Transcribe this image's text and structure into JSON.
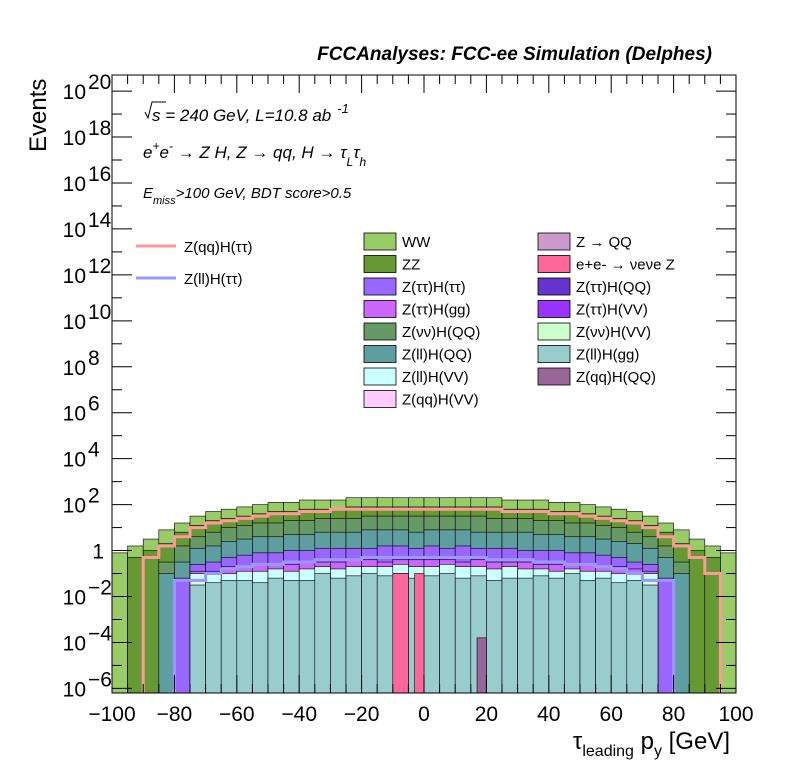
{
  "chart_data": {
    "type": "histogram",
    "title": "FCCAnalyses: FCC-ee Simulation (Delphes)",
    "ylabel": "Events",
    "xlabel_main": "τ",
    "xlabel_sub": "leading",
    "xlabel_rest": " p",
    "xlabel_sub2": "y",
    "xlabel_unit": " [GeV]",
    "xlim": [
      -100,
      100
    ],
    "ylim_log10": [
      -6.2,
      20.7
    ],
    "ylog": true,
    "x_ticks": [
      {
        "v": -100,
        "label": "−100"
      },
      {
        "v": -80,
        "label": "−80"
      },
      {
        "v": -60,
        "label": "−60"
      },
      {
        "v": -40,
        "label": "−40"
      },
      {
        "v": -20,
        "label": "−20"
      },
      {
        "v": 0,
        "label": "0"
      },
      {
        "v": 20,
        "label": "20"
      },
      {
        "v": 40,
        "label": "40"
      },
      {
        "v": 60,
        "label": "60"
      },
      {
        "v": 80,
        "label": "80"
      },
      {
        "v": 100,
        "label": "100"
      }
    ],
    "y_ticks": [
      {
        "e": -6,
        "base": "10",
        "exp": "−6"
      },
      {
        "e": -4,
        "base": "10",
        "exp": "−4"
      },
      {
        "e": -2,
        "base": "10",
        "exp": "−2"
      },
      {
        "e": 0,
        "base": "1",
        "exp": ""
      },
      {
        "e": 2,
        "base": "10",
        "exp": "2"
      },
      {
        "e": 4,
        "base": "10",
        "exp": "4"
      },
      {
        "e": 6,
        "base": "10",
        "exp": "6"
      },
      {
        "e": 8,
        "base": "10",
        "exp": "8"
      },
      {
        "e": 10,
        "base": "10",
        "exp": "10"
      },
      {
        "e": 12,
        "base": "10",
        "exp": "12"
      },
      {
        "e": 14,
        "base": "10",
        "exp": "14"
      },
      {
        "e": 16,
        "base": "10",
        "exp": "16"
      },
      {
        "e": 18,
        "base": "10",
        "exp": "18"
      },
      {
        "e": 20,
        "base": "10",
        "exp": "20"
      }
    ],
    "annotations": {
      "line1_sqrt": "√s",
      "line1_rest": " = 240 GeV, L=10.8 ab",
      "line1_sup": "-1",
      "line2_a": "e",
      "line2_sup1": "+",
      "line2_b": "e",
      "line2_sup2": "-",
      "line2_c": " → Z H, Z  → qq, H  →  τ",
      "line2_sub1": "L",
      "line2_d": "τ",
      "line2_sub2": "h",
      "line3_a": "E",
      "line3_sub": "miss",
      "line3_b": ">100 GeV, BDT score>0.5"
    },
    "bin_edges": [
      -100,
      -95,
      -90,
      -85,
      -80,
      -75,
      -70,
      -65,
      -60,
      -55,
      -50,
      -45,
      -40,
      -35,
      -30,
      -25,
      -20,
      -15,
      -10,
      -5,
      0,
      5,
      10,
      15,
      20,
      25,
      30,
      35,
      40,
      45,
      50,
      55,
      60,
      65,
      70,
      75,
      80,
      85,
      90,
      95,
      100
    ],
    "stack": [
      {
        "name": "Z(ll)H(gg)",
        "color": "#99cccc",
        "log10_values": [
          null,
          null,
          null,
          null,
          null,
          -1.5,
          -1.4,
          -1.3,
          -1.3,
          -1.4,
          -1.2,
          -1.3,
          -1.3,
          -1.0,
          -1.2,
          -1.1,
          -1.0,
          -1.1,
          -1.0,
          -1.2,
          -1.1,
          -1.0,
          -1.2,
          -1.1,
          -1.3,
          -1.2,
          -1.2,
          -1.1,
          -1.2,
          -1.0,
          -1.3,
          -1.2,
          -1.4,
          -1.3,
          -1.5,
          null,
          null,
          null,
          null,
          null
        ]
      },
      {
        "name": "Z(ll)H(VV)",
        "color": "#ccffff",
        "log10_values": [
          null,
          null,
          null,
          null,
          null,
          -1.0,
          -1.0,
          -1.0,
          -0.9,
          -0.9,
          -0.8,
          -0.9,
          -0.8,
          -0.7,
          -0.8,
          -0.7,
          -0.7,
          -0.7,
          -0.6,
          -0.7,
          -0.7,
          -0.6,
          -0.7,
          -0.7,
          -0.8,
          -0.7,
          -0.8,
          -0.8,
          -0.9,
          -0.8,
          -0.9,
          -0.9,
          -1.0,
          -1.0,
          -1.0,
          null,
          null,
          null,
          null,
          null
        ]
      },
      {
        "name": "Z(ττ)H(gg)",
        "color": "#cc66ff",
        "log10_values": [
          null,
          null,
          null,
          null,
          null,
          -0.9,
          -0.9,
          -0.7,
          -0.7,
          -0.6,
          -0.6,
          -0.6,
          -0.5,
          -0.5,
          -0.5,
          -0.4,
          -0.4,
          -0.5,
          -0.4,
          -0.4,
          -0.4,
          -0.4,
          -0.5,
          -0.4,
          -0.5,
          -0.5,
          -0.5,
          -0.6,
          -0.6,
          -0.6,
          -0.6,
          -0.7,
          -0.7,
          -0.8,
          -0.9,
          null,
          null,
          null,
          null,
          null
        ]
      },
      {
        "name": "Z(ττ)H(ττ)",
        "color": "#9966ff",
        "log10_values": [
          null,
          null,
          null,
          null,
          -1.2,
          -0.6,
          -0.5,
          -0.3,
          -0.2,
          -0.1,
          -0.1,
          0.0,
          0.0,
          0.1,
          0.1,
          0.1,
          0.1,
          0.2,
          0.2,
          0.1,
          0.2,
          0.1,
          0.2,
          0.1,
          0.1,
          0.1,
          0.0,
          0.0,
          0.0,
          -0.1,
          -0.1,
          -0.2,
          -0.3,
          -0.5,
          -0.6,
          -1.2,
          null,
          null,
          null,
          null
        ]
      },
      {
        "name": "Z(ll)H(QQ)",
        "color": "#5f9ea0",
        "log10_values": [
          null,
          null,
          null,
          -1.0,
          -0.5,
          0.1,
          0.2,
          0.4,
          0.5,
          0.6,
          0.6,
          0.7,
          0.7,
          0.8,
          0.8,
          0.8,
          0.9,
          0.9,
          0.9,
          0.8,
          0.9,
          0.9,
          0.9,
          0.8,
          0.8,
          0.8,
          0.8,
          0.7,
          0.7,
          0.6,
          0.6,
          0.5,
          0.4,
          0.3,
          0.1,
          -0.3,
          -1.0,
          null,
          null,
          null
        ]
      },
      {
        "name": "Z(νν)H(QQ)",
        "color": "#669966",
        "log10_values": [
          null,
          null,
          null,
          -0.5,
          0.2,
          0.6,
          0.8,
          1.0,
          1.1,
          1.2,
          1.2,
          1.3,
          1.3,
          1.4,
          1.4,
          1.4,
          1.5,
          1.5,
          1.5,
          1.5,
          1.5,
          1.5,
          1.5,
          1.5,
          1.4,
          1.4,
          1.4,
          1.3,
          1.3,
          1.2,
          1.2,
          1.1,
          1.0,
          0.8,
          0.6,
          0.2,
          -0.5,
          null,
          null,
          null
        ]
      },
      {
        "name": "ZZ",
        "color": "#669933",
        "log10_values": [
          null,
          -0.3,
          0.0,
          0.3,
          0.8,
          1.1,
          1.3,
          1.4,
          1.5,
          1.6,
          1.7,
          1.7,
          1.8,
          1.8,
          1.8,
          1.9,
          1.9,
          1.9,
          1.9,
          1.9,
          1.9,
          1.9,
          1.9,
          1.9,
          1.9,
          1.8,
          1.8,
          1.8,
          1.7,
          1.7,
          1.6,
          1.5,
          1.4,
          1.3,
          1.1,
          0.8,
          0.3,
          0.0,
          -0.3,
          null
        ]
      },
      {
        "name": "WW",
        "color": "#99cc66",
        "log10_values": [
          -0.1,
          0.2,
          0.5,
          0.9,
          1.2,
          1.5,
          1.7,
          1.8,
          1.9,
          2.0,
          2.1,
          2.1,
          2.2,
          2.2,
          2.2,
          2.3,
          2.3,
          2.3,
          2.3,
          2.3,
          2.3,
          2.3,
          2.3,
          2.3,
          2.3,
          2.2,
          2.2,
          2.2,
          2.1,
          2.1,
          2.0,
          1.9,
          1.8,
          1.7,
          1.5,
          1.2,
          0.9,
          0.5,
          0.2,
          -0.1
        ]
      }
    ],
    "spikes": [
      {
        "name": "e+e- → νeνe Z",
        "color": "#ff6699",
        "x0": -10,
        "x1": -5,
        "log10": -1.0
      },
      {
        "name": "e+e- → νeνe Z",
        "color": "#ff6699",
        "x0": -3,
        "x1": 0,
        "log10": -1.0
      },
      {
        "name": "Z(qq)H(QQ)",
        "color": "#996699",
        "x0": 17,
        "x1": 20,
        "log10": -3.8
      }
    ],
    "overlays": [
      {
        "name": "Z(qq)H(ττ)",
        "color": "#ff9999",
        "log10_values": [
          null,
          null,
          -0.3,
          0.2,
          0.6,
          1.0,
          1.2,
          1.3,
          1.4,
          1.5,
          1.6,
          1.6,
          1.7,
          1.7,
          1.8,
          1.8,
          1.8,
          1.8,
          1.8,
          1.8,
          1.8,
          1.8,
          1.8,
          1.8,
          1.8,
          1.7,
          1.7,
          1.7,
          1.6,
          1.6,
          1.5,
          1.4,
          1.3,
          1.2,
          1.0,
          0.6,
          0.2,
          -0.3,
          -1.0,
          null
        ]
      },
      {
        "name": "Z(ll)H(ττ)",
        "color": "#9999ff",
        "log10_values": [
          null,
          null,
          null,
          null,
          -1.3,
          -1.3,
          -1.0,
          -0.8,
          -0.7,
          -0.6,
          -0.6,
          -0.5,
          -0.5,
          -0.4,
          -0.4,
          -0.4,
          -0.3,
          -0.3,
          -0.3,
          -0.3,
          -0.3,
          -0.3,
          -0.3,
          -0.3,
          -0.4,
          -0.4,
          -0.4,
          -0.5,
          -0.5,
          -0.6,
          -0.6,
          -0.7,
          -0.8,
          -1.0,
          -1.3,
          -1.3,
          null,
          null,
          null,
          null
        ]
      }
    ],
    "legend_lines": [
      {
        "label": "Z(qq)H(ττ)",
        "color": "#ff9999"
      },
      {
        "label": "Z(ll)H(ττ)",
        "color": "#9999ff"
      }
    ],
    "legend_boxes": [
      {
        "label": "WW",
        "color": "#99cc66"
      },
      {
        "label": "Z → QQ",
        "color": "#cc99cc"
      },
      {
        "label": "ZZ",
        "color": "#669933"
      },
      {
        "label": "e+e- → νeνe Z",
        "color": "#ff6699"
      },
      {
        "label": "Z(ττ)H(ττ)",
        "color": "#9966ff"
      },
      {
        "label": "Z(ττ)H(QQ)",
        "color": "#6633cc"
      },
      {
        "label": "Z(ττ)H(gg)",
        "color": "#cc66ff"
      },
      {
        "label": "Z(ττ)H(VV)",
        "color": "#9933ff"
      },
      {
        "label": "Z(νν)H(QQ)",
        "color": "#669966"
      },
      {
        "label": "Z(νν)H(VV)",
        "color": "#ccffcc"
      },
      {
        "label": "Z(ll)H(QQ)",
        "color": "#5f9ea0"
      },
      {
        "label": "Z(ll)H(gg)",
        "color": "#99cccc"
      },
      {
        "label": "Z(ll)H(VV)",
        "color": "#ccffff"
      },
      {
        "label": "Z(qq)H(QQ)",
        "color": "#996699"
      },
      {
        "label": "Z(qq)H(VV)",
        "color": "#ffccff"
      }
    ]
  }
}
